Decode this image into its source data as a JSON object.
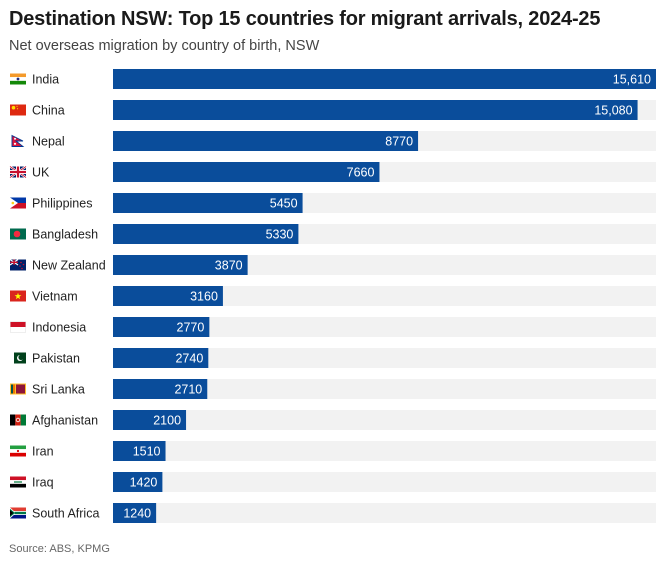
{
  "header": {
    "title": "Destination NSW: Top 15 countries for migrant arrivals, 2024-25",
    "subtitle": "Net overseas migration by country of birth, NSW"
  },
  "footer": {
    "source": "Source: ABS, KPMG"
  },
  "colors": {
    "bar": "#0a4d9b",
    "track": "#f2f2f2",
    "value_text": "#ffffff"
  },
  "chart_data": {
    "type": "bar",
    "orientation": "horizontal",
    "title": "Destination NSW: Top 15 countries for migrant arrivals, 2024-25",
    "subtitle": "Net overseas migration by country of birth, NSW",
    "xlabel": "",
    "ylabel": "",
    "xlim": [
      0,
      15610
    ],
    "grid": false,
    "legend": "none",
    "categories": [
      "India",
      "China",
      "Nepal",
      "UK",
      "Philippines",
      "Bangladesh",
      "New Zealand",
      "Vietnam",
      "Indonesia",
      "Pakistan",
      "Sri Lanka",
      "Afghanistan",
      "Iran",
      "Iraq",
      "South Africa"
    ],
    "values": [
      15610,
      15080,
      8770,
      7660,
      5450,
      5330,
      3870,
      3160,
      2770,
      2740,
      2710,
      2100,
      1510,
      1420,
      1240
    ],
    "value_labels": [
      "15,610",
      "15,080",
      "8770",
      "7660",
      "5450",
      "5330",
      "3870",
      "3160",
      "2770",
      "2740",
      "2710",
      "2100",
      "1510",
      "1420",
      "1240"
    ],
    "flags": [
      "india-flag-icon",
      "china-flag-icon",
      "nepal-flag-icon",
      "uk-flag-icon",
      "philippines-flag-icon",
      "bangladesh-flag-icon",
      "new-zealand-flag-icon",
      "vietnam-flag-icon",
      "indonesia-flag-icon",
      "pakistan-flag-icon",
      "sri-lanka-flag-icon",
      "afghanistan-flag-icon",
      "iran-flag-icon",
      "iraq-flag-icon",
      "south-africa-flag-icon"
    ]
  }
}
